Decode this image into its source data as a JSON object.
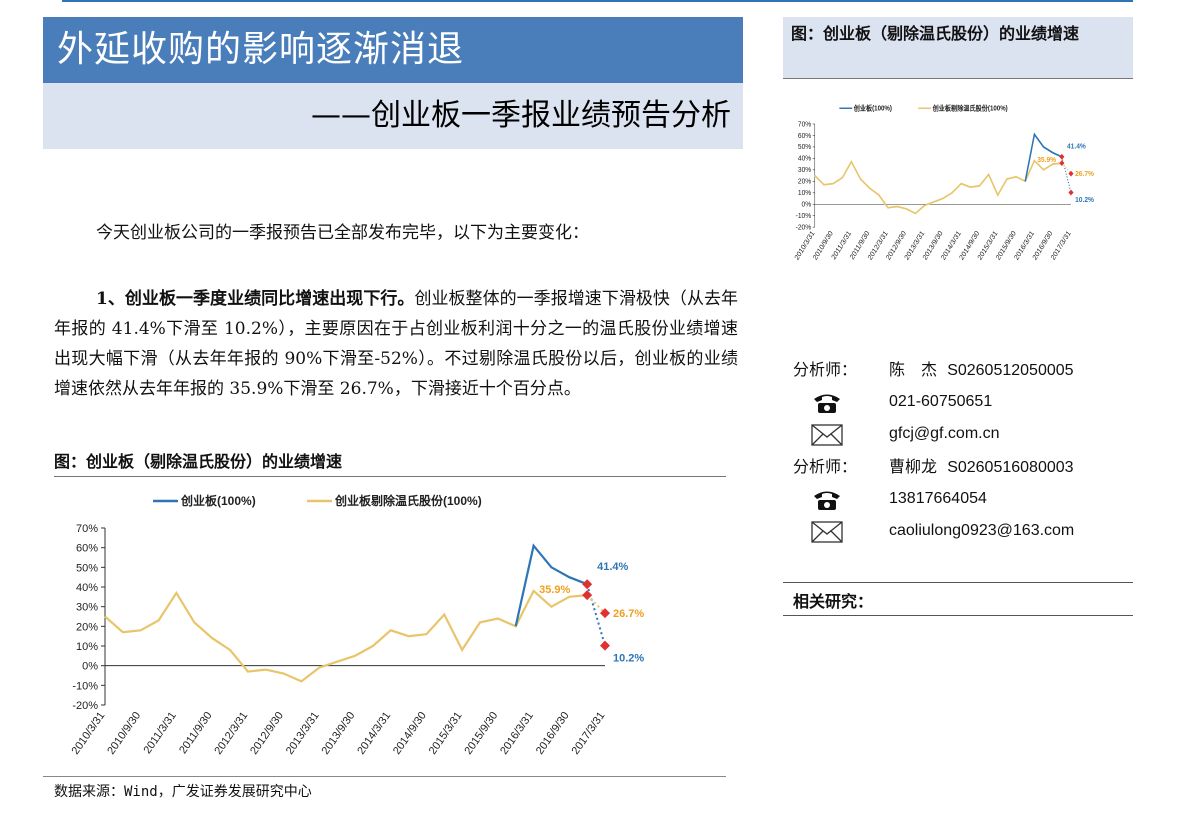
{
  "header": {
    "title": "外延收购的影响逐渐消退",
    "subtitle": "——创业板一季报业绩预告分析"
  },
  "body": {
    "intro": "今天创业板公司的一季报预告已全部发布完毕，以下为主要变化：",
    "point1_bold": "1、创业板一季度业绩同比增速出现下行。",
    "point1_text": "创业板整体的一季报增速下滑极快（从去年年报的 41.4%下滑至 10.2%），主要原因在于占创业板利润十分之一的温氏股份业绩增速出现大幅下滑（从去年年报的 90%下滑至-52%）。不过剔除温氏股份以后，创业板的业绩增速依然从去年年报的 35.9%下滑至 26.7%，下滑接近十个百分点。",
    "figure_title": "图：创业板（剔除温氏股份）的业绩增速",
    "source": "数据来源：Wind，广发证券发展研究中心"
  },
  "sidebar": {
    "figure_title": "图：创业板（剔除温氏股份）的业绩增速",
    "analysts": [
      {
        "label": "分析师：",
        "name": "陈　杰",
        "id": "S0260512050005",
        "phone": "021-60750651",
        "email": "gfcj@gf.com.cn"
      },
      {
        "label": "分析师：",
        "name": "曹柳龙",
        "id": "S0260516080003",
        "phone": "13817664054",
        "email": "caoliulong0923@163.com"
      }
    ],
    "related_title": "相关研究："
  },
  "colors": {
    "blue": "#2e75b6",
    "gold": "#e8c56a",
    "red": "#e03030",
    "orange": "#f0a020"
  },
  "chart_data": {
    "type": "line",
    "x": [
      "2010/3/31",
      "2010/6/30",
      "2010/9/30",
      "2010/12/31",
      "2011/3/31",
      "2011/6/30",
      "2011/9/30",
      "2011/12/31",
      "2012/3/31",
      "2012/6/30",
      "2012/9/30",
      "2012/12/31",
      "2013/3/31",
      "2013/6/30",
      "2013/9/30",
      "2013/12/31",
      "2014/3/31",
      "2014/6/30",
      "2014/9/30",
      "2014/12/31",
      "2015/3/31",
      "2015/6/30",
      "2015/9/30",
      "2015/12/31",
      "2016/3/31",
      "2016/6/30",
      "2016/9/30",
      "2016/12/31"
    ],
    "xticks": [
      "2010/3/31",
      "2010/9/30",
      "2011/3/31",
      "2011/9/30",
      "2012/3/31",
      "2012/9/30",
      "2013/3/31",
      "2013/9/30",
      "2014/3/31",
      "2014/9/30",
      "2015/3/31",
      "2015/9/30",
      "2016/3/31",
      "2016/9/30",
      "2017/3/31"
    ],
    "series": [
      {
        "name": "创业板(100%)",
        "values": [
          null,
          null,
          null,
          null,
          null,
          null,
          null,
          null,
          null,
          null,
          null,
          null,
          null,
          null,
          null,
          null,
          null,
          null,
          null,
          null,
          null,
          null,
          null,
          20,
          61,
          50,
          45,
          41.4
        ]
      },
      {
        "name": "创业板剔除温氏股份(100%)",
        "values": [
          25,
          17,
          18,
          23,
          37,
          22,
          14,
          8,
          -3,
          -2,
          -4,
          -8,
          -1,
          2,
          5,
          10,
          18,
          15,
          16,
          26,
          8,
          22,
          24,
          20,
          38,
          30,
          35,
          35.9
        ]
      }
    ],
    "projections": [
      {
        "from": "2016/12/31",
        "to": "2017/3/31",
        "from_value": 41.4,
        "to_value": 10.2,
        "from_label": "41.4%",
        "to_label": "10.2%"
      },
      {
        "from": "2016/12/31",
        "to": "2017/3/31",
        "from_value": 35.9,
        "to_value": 26.7,
        "from_label": "35.9%",
        "to_label": "26.7%"
      }
    ],
    "ylim": [
      -20,
      70
    ],
    "yticks": [
      "70%",
      "60%",
      "50%",
      "40%",
      "30%",
      "20%",
      "10%",
      "0%",
      "-10%",
      "-20%"
    ],
    "legend": "top"
  }
}
